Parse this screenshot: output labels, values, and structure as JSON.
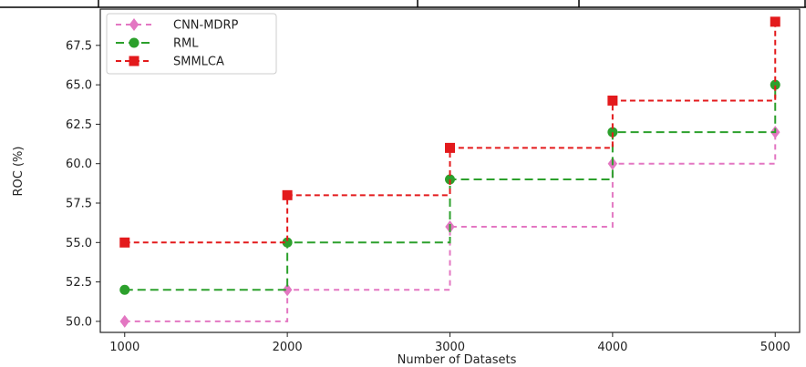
{
  "chart_data": {
    "type": "line",
    "title": "",
    "xlabel": "Number of Datasets",
    "ylabel": "ROC (%)",
    "x": [
      1000,
      2000,
      3000,
      4000,
      5000
    ],
    "xlim": [
      850,
      5150
    ],
    "ylim": [
      49.3,
      69.8
    ],
    "xticks": [
      1000,
      2000,
      3000,
      4000,
      5000
    ],
    "yticks": [
      50.0,
      52.5,
      55.0,
      57.5,
      60.0,
      62.5,
      65.0,
      67.5
    ],
    "ytick_labels": [
      "50.0",
      "52.5",
      "55.0",
      "57.5",
      "60.0",
      "62.5",
      "65.0",
      "67.5"
    ],
    "grid": false,
    "legend_position": "top-left",
    "drawstyle": "steps-post",
    "series": [
      {
        "name": "CNN-MDRP",
        "values": [
          50,
          52,
          56,
          60,
          62
        ],
        "color": "#e377c2",
        "marker": "diamond",
        "dash": "6,5"
      },
      {
        "name": "RML",
        "values": [
          52,
          55,
          59,
          62,
          65
        ],
        "color": "#2ca02c",
        "marker": "circle",
        "dash": "9,5"
      },
      {
        "name": "SMMLCA",
        "values": [
          55,
          58,
          61,
          64,
          69
        ],
        "color": "#e31a1c",
        "marker": "square",
        "dash": "6,4"
      }
    ]
  }
}
